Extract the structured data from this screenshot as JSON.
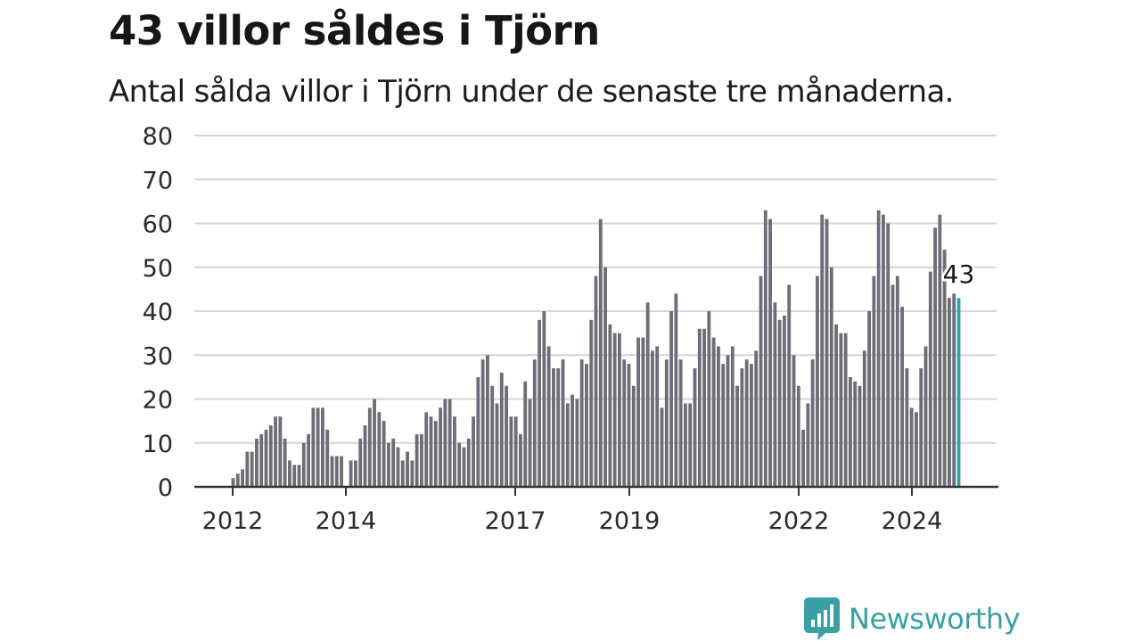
{
  "header": {
    "title": "43 villor såldes i Tjörn",
    "subtitle": "Antal sålda villor i Tjörn under de senaste tre månaderna."
  },
  "brand": {
    "name": "Newsworthy",
    "icon": "newsworthy-logo-icon"
  },
  "colors": {
    "bar": "#6e6d73",
    "highlight": "#2aa6a6",
    "grid": "#d6d6d6",
    "axis": "#333333",
    "brand": "#3aa0a3"
  },
  "chart_data": {
    "type": "bar",
    "title": "43 villor såldes i Tjörn",
    "subtitle": "Antal sålda villor i Tjörn under de senaste tre månaderna.",
    "ylim": [
      0,
      80
    ],
    "yticks": [
      0,
      10,
      20,
      30,
      40,
      50,
      60,
      70,
      80
    ],
    "xticks": [
      "2012",
      "2014",
      "2017",
      "2019",
      "2022",
      "2024"
    ],
    "grid": true,
    "series": [
      {
        "values": [
          2,
          3,
          4,
          8,
          8,
          11,
          12,
          13,
          14,
          16,
          16,
          11,
          6,
          5,
          5,
          10,
          12,
          18,
          18,
          18,
          13,
          7,
          7,
          7,
          0,
          6,
          6,
          11,
          14,
          18,
          20,
          17,
          15,
          10,
          11,
          9,
          6,
          8,
          6,
          12,
          12,
          17,
          16,
          15,
          18,
          20,
          20,
          16,
          10,
          9,
          11,
          16,
          25,
          29,
          30,
          23,
          19,
          26,
          23,
          16,
          16,
          12,
          24,
          20,
          29,
          38,
          40,
          32,
          27,
          27,
          29,
          19,
          21,
          20,
          29,
          28,
          38,
          48,
          61,
          50,
          37,
          35,
          35,
          29,
          28,
          23,
          34,
          34,
          42,
          31,
          32,
          18,
          29,
          40,
          44,
          29,
          19,
          19,
          27,
          36,
          36,
          40,
          34,
          32,
          28,
          30,
          32,
          23,
          27,
          29,
          28,
          31,
          48,
          63,
          61,
          42,
          38,
          39,
          46,
          30,
          23,
          13,
          19,
          29,
          48,
          62,
          61,
          50,
          37,
          35,
          35,
          25,
          24,
          23,
          31,
          40,
          48,
          63,
          62,
          60,
          46,
          48,
          41,
          27,
          18,
          17,
          27,
          32,
          49,
          59,
          62,
          54,
          43,
          44,
          43
        ]
      }
    ],
    "highlight": {
      "value": 43,
      "label": "43"
    }
  }
}
